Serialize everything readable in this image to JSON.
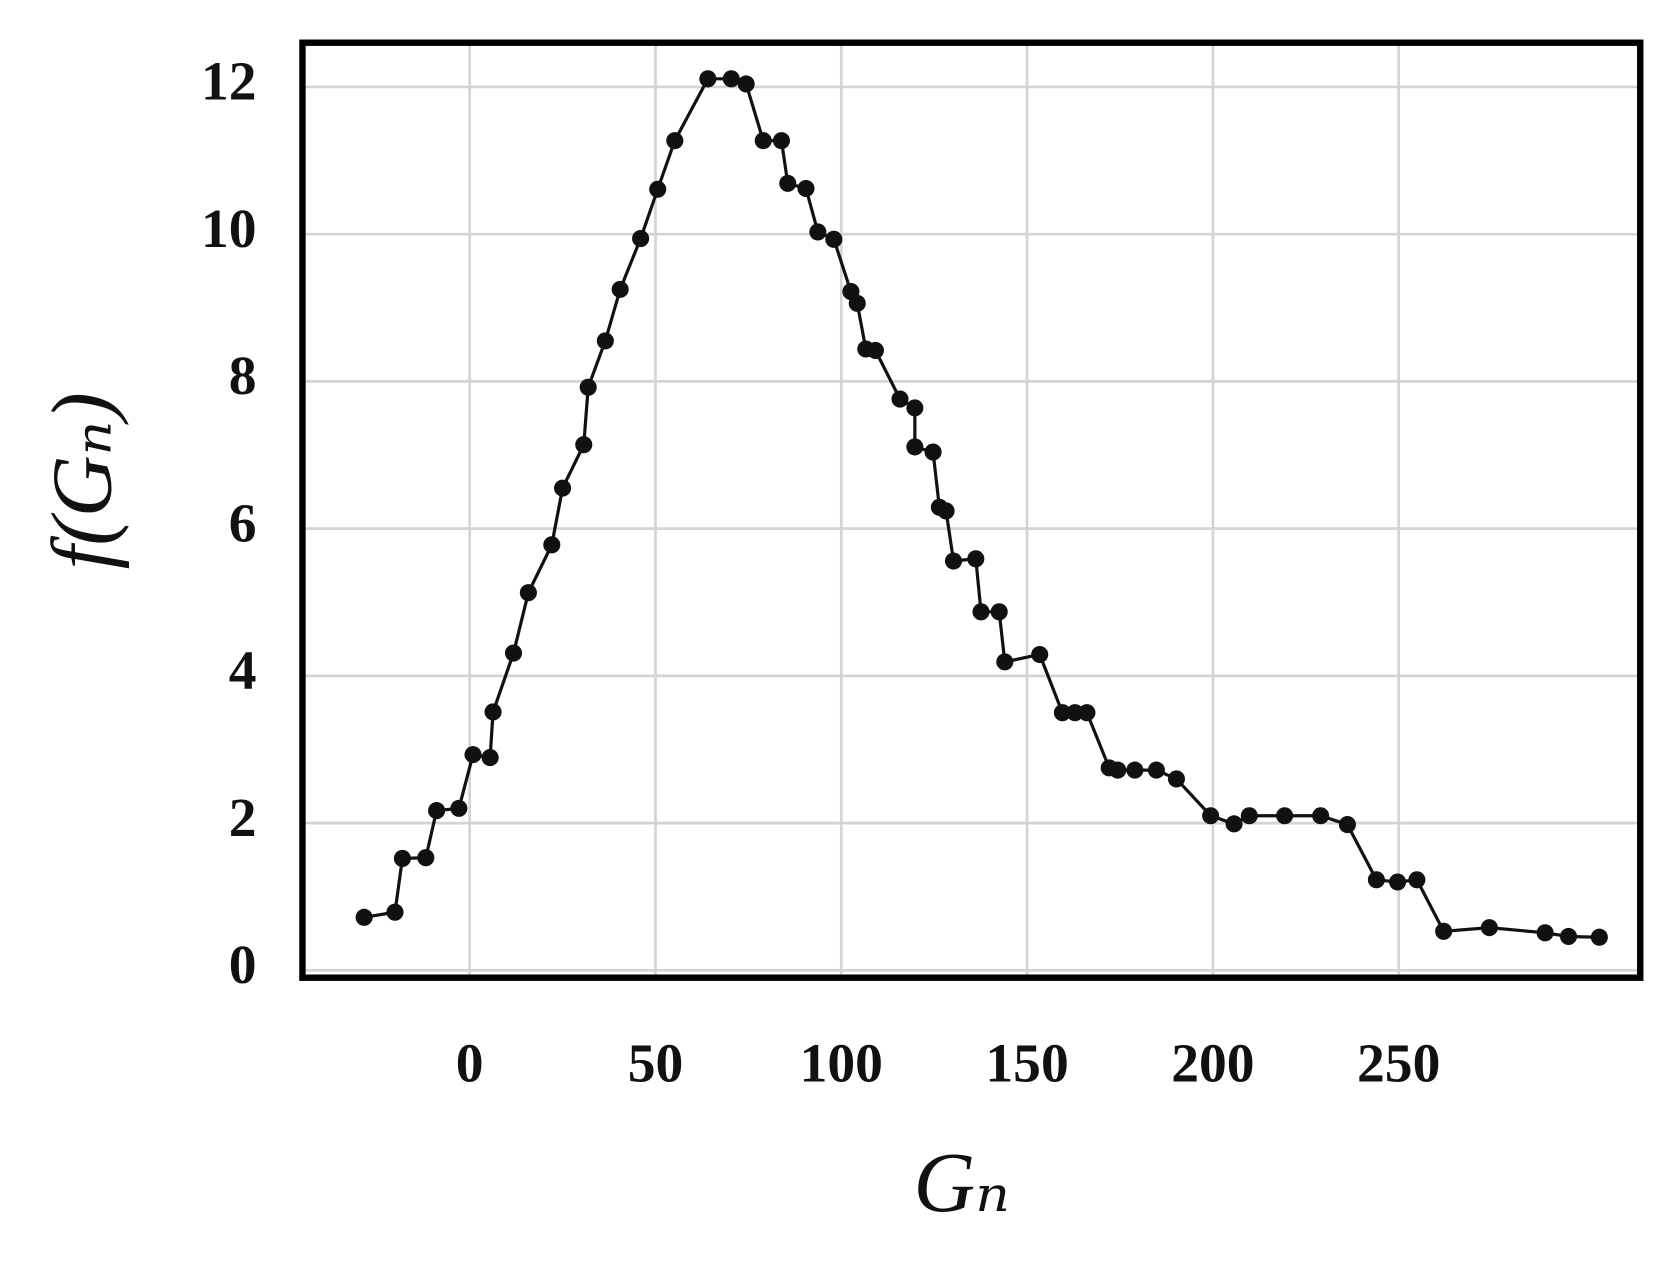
{
  "chart_data": {
    "type": "line",
    "xlabel": "Gₙ",
    "ylabel": "f(Gₙ)",
    "xlim": [
      -45,
      315
    ],
    "ylim": [
      -0.1,
      12.6
    ],
    "xticks": [
      0,
      50,
      100,
      150,
      200,
      250
    ],
    "yticks": [
      0,
      2,
      4,
      6,
      8,
      10,
      12
    ],
    "grid": true,
    "series": [
      {
        "color": "#111111",
        "x": [
          -28.4,
          -20.1,
          -18.1,
          -11.8,
          -8.9,
          -2.9,
          0.9,
          5.5,
          6.3,
          11.8,
          15.8,
          22.1,
          25.0,
          30.7,
          31.9,
          36.5,
          40.5,
          46.0,
          50.6,
          55.2,
          64.1,
          70.4,
          74.4,
          79.0,
          83.9,
          85.6,
          90.5,
          93.7,
          98.0,
          102.6,
          104.3,
          106.6,
          109.2,
          115.8,
          119.8,
          119.8,
          124.7,
          126.4,
          128.2,
          130.2,
          136.2,
          137.6,
          142.5,
          144.0,
          153.4,
          159.5,
          162.9,
          166.1,
          172.1,
          174.4,
          179.0,
          184.8,
          190.2,
          199.4,
          205.7,
          209.8,
          219.3,
          229.0,
          236.2,
          244.0,
          249.7,
          254.9,
          262.1,
          274.4,
          289.4,
          295.7,
          304.0
        ],
        "values": [
          0.72,
          0.79,
          1.52,
          1.53,
          2.17,
          2.2,
          2.93,
          2.89,
          3.51,
          4.31,
          5.13,
          5.78,
          6.55,
          7.14,
          7.92,
          8.55,
          9.25,
          9.94,
          10.61,
          11.27,
          12.11,
          12.11,
          12.04,
          11.27,
          11.27,
          10.69,
          10.62,
          10.03,
          9.93,
          9.22,
          9.06,
          8.44,
          8.42,
          7.76,
          7.64,
          7.11,
          7.04,
          6.29,
          6.24,
          5.56,
          5.59,
          4.87,
          4.87,
          4.19,
          4.29,
          3.5,
          3.5,
          3.5,
          2.75,
          2.72,
          2.72,
          2.72,
          2.6,
          2.1,
          1.99,
          2.1,
          2.1,
          2.1,
          1.98,
          1.23,
          1.2,
          1.23,
          0.53,
          0.58,
          0.51,
          0.46,
          0.45
        ]
      }
    ]
  }
}
